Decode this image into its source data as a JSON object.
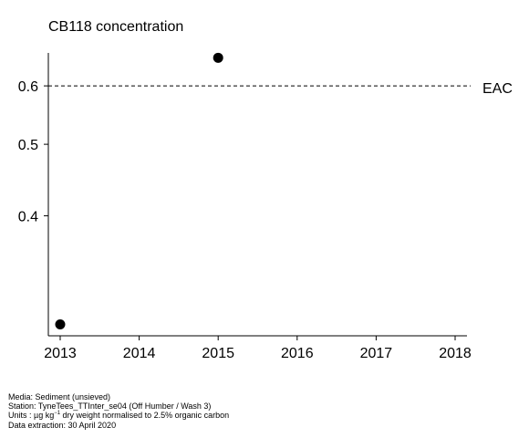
{
  "chart_data": {
    "type": "scatter",
    "title": "CB118 concentration",
    "xlabel": "",
    "ylabel": "",
    "x": [
      2013,
      2015
    ],
    "y": [
      0.285,
      0.655
    ],
    "xlim": [
      2012.85,
      2018.15
    ],
    "ylim": [
      0.275,
      0.665
    ],
    "yscale": "log",
    "xticks": [
      "2013",
      "2014",
      "2015",
      "2016",
      "2017",
      "2018"
    ],
    "yticks": [
      "0.4",
      "0.5",
      "0.6"
    ],
    "grid": false,
    "reference_line": {
      "label": "EAC",
      "value": 0.6,
      "style": "dashed"
    }
  },
  "footer": {
    "media": "Media: Sediment (unsieved)",
    "station": "Station: TyneTees_TTInter_se04 (Off Humber / Wash 3)",
    "units_prefix": "Units : µg kg",
    "units_sup": "−1",
    "units_suffix": " dry weight normalised to 2.5% organic carbon",
    "extraction": "Data extraction: 30 April 2020"
  }
}
